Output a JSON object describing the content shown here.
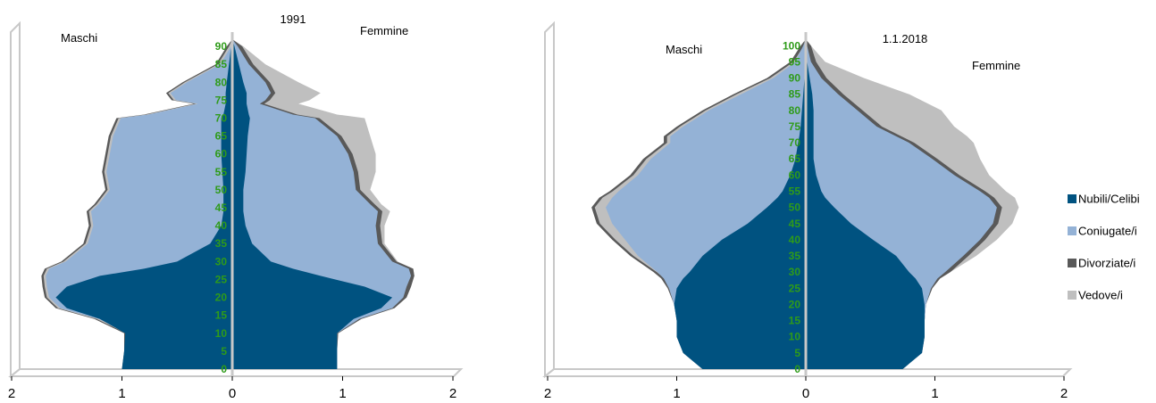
{
  "colors": {
    "nubili": "#005280",
    "coniugate": "#94b2d6",
    "divorziate": "#595959",
    "vedove": "#bfbfbf",
    "age_labels": "#2e9b19",
    "frame": "#c8c8c8"
  },
  "legend": [
    {
      "label": "Nubili/Celibi",
      "color": "#005280"
    },
    {
      "label": "Coniugate/i",
      "color": "#94b2d6"
    },
    {
      "label": "Divorziate/i",
      "color": "#595959"
    },
    {
      "label": "Vedove/i",
      "color": "#bfbfbf"
    }
  ],
  "chart_data": [
    {
      "type": "bar",
      "orientation": "horizontal-population-pyramid",
      "title": "1991",
      "left_label": "Maschi",
      "right_label": "Femmine",
      "x_ticks": [
        "2",
        "1",
        "0",
        "1",
        "2"
      ],
      "xlim": [
        -2,
        2
      ],
      "age_ticks": [
        "0",
        "5",
        "10",
        "15",
        "20",
        "25",
        "30",
        "35",
        "40",
        "45",
        "50",
        "55",
        "60",
        "65",
        "70",
        "75",
        "80",
        "85",
        "90"
      ],
      "age_max": 92,
      "males": {
        "ages": [
          0,
          5,
          10,
          14,
          17,
          20,
          23,
          26,
          28,
          30,
          35,
          40,
          44,
          46,
          50,
          55,
          60,
          65,
          70,
          71,
          74,
          75,
          77,
          80,
          85,
          90,
          92
        ],
        "nubili": [
          1.0,
          0.98,
          0.97,
          1.2,
          1.5,
          1.6,
          1.5,
          1.2,
          0.8,
          0.5,
          0.2,
          0.1,
          0.08,
          0.08,
          0.08,
          0.09,
          0.1,
          0.1,
          0.1,
          0.08,
          0.06,
          0.06,
          0.06,
          0.05,
          0.03,
          0.01,
          0.0
        ],
        "total": [
          1.0,
          0.98,
          0.98,
          1.25,
          1.6,
          1.7,
          1.72,
          1.73,
          1.7,
          1.55,
          1.35,
          1.3,
          1.32,
          1.25,
          1.15,
          1.18,
          1.15,
          1.12,
          1.05,
          0.8,
          0.35,
          0.55,
          0.6,
          0.45,
          0.15,
          0.05,
          0.0
        ],
        "divorziate": 0.02
      },
      "females": {
        "ages": [
          0,
          5,
          10,
          14,
          17,
          20,
          23,
          26,
          28,
          30,
          35,
          40,
          44,
          46,
          50,
          55,
          60,
          65,
          70,
          71,
          74,
          75,
          77,
          80,
          85,
          90,
          92
        ],
        "nubili": [
          0.95,
          0.95,
          0.95,
          1.1,
          1.35,
          1.45,
          1.2,
          0.8,
          0.55,
          0.35,
          0.18,
          0.12,
          0.1,
          0.1,
          0.1,
          0.12,
          0.13,
          0.14,
          0.16,
          0.15,
          0.13,
          0.13,
          0.13,
          0.1,
          0.06,
          0.02,
          0.0
        ],
        "coniugate": [
          0.95,
          0.95,
          0.95,
          1.15,
          1.45,
          1.55,
          1.58,
          1.62,
          1.6,
          1.45,
          1.32,
          1.3,
          1.32,
          1.25,
          1.12,
          1.1,
          1.05,
          0.95,
          0.75,
          0.55,
          0.25,
          0.3,
          0.35,
          0.3,
          0.15,
          0.05,
          0.0
        ],
        "total": [
          0.95,
          0.95,
          0.96,
          1.17,
          1.47,
          1.58,
          1.62,
          1.65,
          1.64,
          1.5,
          1.38,
          1.38,
          1.43,
          1.35,
          1.25,
          1.3,
          1.3,
          1.25,
          1.2,
          0.95,
          0.6,
          0.7,
          0.8,
          0.6,
          0.3,
          0.1,
          0.0
        ],
        "divorziate": 0.02
      }
    },
    {
      "type": "bar",
      "orientation": "horizontal-population-pyramid",
      "title": "1.1.2018",
      "left_label": "Maschi",
      "right_label": "Femmine",
      "x_ticks": [
        "2",
        "1",
        "0",
        "1",
        "2"
      ],
      "xlim": [
        -2,
        2
      ],
      "age_ticks": [
        "0",
        "5",
        "10",
        "15",
        "20",
        "25",
        "30",
        "35",
        "40",
        "45",
        "50",
        "55",
        "60",
        "65",
        "70",
        "75",
        "80",
        "85",
        "90",
        "95",
        "100"
      ],
      "age_max": 102,
      "males": {
        "ages": [
          0,
          5,
          10,
          15,
          20,
          25,
          28,
          30,
          35,
          40,
          45,
          50,
          53,
          55,
          60,
          65,
          70,
          72,
          75,
          80,
          85,
          90,
          95,
          100,
          102
        ],
        "nubili": [
          0.8,
          0.95,
          1.0,
          1.0,
          1.02,
          1.0,
          0.95,
          0.9,
          0.8,
          0.65,
          0.45,
          0.3,
          0.22,
          0.18,
          0.12,
          0.08,
          0.06,
          0.05,
          0.04,
          0.03,
          0.02,
          0.01,
          0.0,
          0.0,
          0.0
        ],
        "coniugate": [
          0.8,
          0.95,
          1.0,
          1.0,
          1.02,
          1.06,
          1.1,
          1.15,
          1.3,
          1.4,
          1.5,
          1.55,
          1.5,
          1.45,
          1.3,
          1.2,
          1.05,
          1.05,
          0.95,
          0.75,
          0.5,
          0.25,
          0.08,
          0.02,
          0.0
        ],
        "total": [
          0.8,
          0.95,
          1.0,
          1.0,
          1.02,
          1.07,
          1.12,
          1.18,
          1.36,
          1.5,
          1.62,
          1.66,
          1.6,
          1.52,
          1.36,
          1.26,
          1.1,
          1.1,
          1.0,
          0.8,
          0.56,
          0.3,
          0.12,
          0.04,
          0.0
        ]
      },
      "females": {
        "ages": [
          0,
          5,
          10,
          15,
          20,
          25,
          28,
          30,
          35,
          40,
          45,
          50,
          53,
          55,
          60,
          65,
          70,
          72,
          75,
          80,
          85,
          90,
          95,
          100,
          102
        ],
        "nubili": [
          0.75,
          0.9,
          0.92,
          0.92,
          0.92,
          0.9,
          0.85,
          0.8,
          0.7,
          0.52,
          0.35,
          0.22,
          0.15,
          0.12,
          0.08,
          0.06,
          0.06,
          0.06,
          0.06,
          0.06,
          0.05,
          0.03,
          0.01,
          0.0,
          0.0
        ],
        "coniugate": [
          0.75,
          0.9,
          0.92,
          0.92,
          0.93,
          0.97,
          1.02,
          1.08,
          1.22,
          1.35,
          1.45,
          1.48,
          1.42,
          1.35,
          1.15,
          0.98,
          0.8,
          0.7,
          0.55,
          0.4,
          0.25,
          0.12,
          0.04,
          0.01,
          0.0
        ],
        "total": [
          0.75,
          0.9,
          0.92,
          0.92,
          0.93,
          0.98,
          1.04,
          1.12,
          1.32,
          1.48,
          1.6,
          1.65,
          1.62,
          1.55,
          1.42,
          1.35,
          1.3,
          1.25,
          1.15,
          1.05,
          0.8,
          0.45,
          0.15,
          0.04,
          0.0
        ]
      }
    }
  ]
}
